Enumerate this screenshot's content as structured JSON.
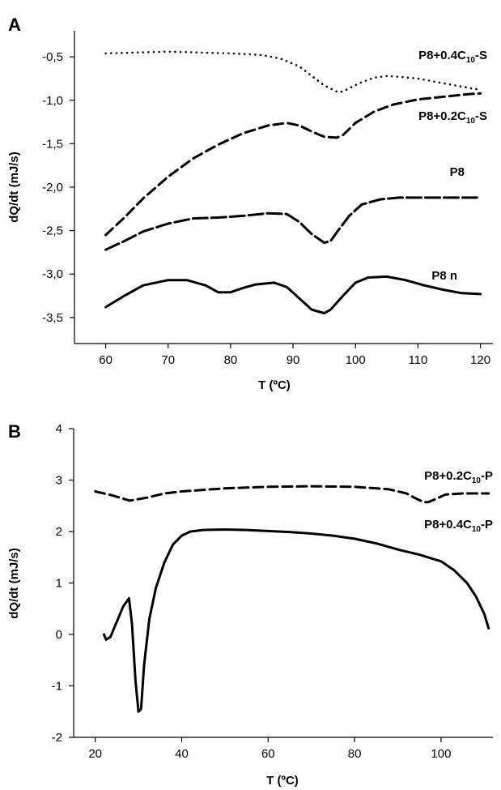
{
  "chart_data": [
    {
      "panel": "A",
      "type": "line",
      "xlabel": "T (ºC)",
      "ylabel": "dQ/dt (mJ/s)",
      "xlim": [
        55,
        122
      ],
      "ylim": [
        -3.8,
        -0.2
      ],
      "xticks": [
        60,
        70,
        80,
        90,
        100,
        110,
        120
      ],
      "yticks": [
        -0.5,
        -1.0,
        -1.5,
        -2.0,
        -2.5,
        -3.0,
        -3.5
      ],
      "ytick_labels": [
        "-0,5",
        "-1,0",
        "-1,5",
        "-2,0",
        "-2,5",
        "-3,0",
        "-3,5"
      ],
      "grid": false,
      "series": [
        {
          "name_main": "P8+0.4C",
          "name_sub": "10",
          "name_tail": "-S",
          "style": "dotted",
          "stroke_width": 2.6,
          "x": [
            60,
            65,
            70,
            75,
            80,
            85,
            88,
            91,
            93,
            95,
            97,
            98,
            99,
            101,
            103,
            105,
            107,
            110,
            113,
            116,
            120
          ],
          "y": [
            -0.46,
            -0.45,
            -0.44,
            -0.45,
            -0.46,
            -0.48,
            -0.52,
            -0.61,
            -0.72,
            -0.83,
            -0.9,
            -0.9,
            -0.86,
            -0.79,
            -0.74,
            -0.72,
            -0.73,
            -0.75,
            -0.79,
            -0.83,
            -0.88
          ]
        },
        {
          "name_main": "P8+0.2C",
          "name_sub": "10",
          "name_tail": "-S",
          "style": "dashed",
          "stroke_width": 3,
          "x": [
            60,
            63,
            66,
            70,
            74,
            78,
            82,
            86,
            89,
            91,
            93,
            95,
            97,
            98,
            100,
            103,
            106,
            110,
            114,
            118,
            120
          ],
          "y": [
            -2.55,
            -2.35,
            -2.13,
            -1.88,
            -1.67,
            -1.51,
            -1.38,
            -1.29,
            -1.26,
            -1.29,
            -1.36,
            -1.42,
            -1.43,
            -1.4,
            -1.26,
            -1.13,
            -1.05,
            -0.99,
            -0.96,
            -0.93,
            -0.92
          ]
        },
        {
          "name_main": "P8",
          "name_sub": "",
          "name_tail": "",
          "style": "long-dash",
          "stroke_width": 3,
          "x": [
            60,
            63,
            66,
            70,
            74,
            78,
            82,
            86,
            89,
            91,
            93,
            95,
            96,
            97,
            99,
            101,
            104,
            107,
            110,
            115,
            120
          ],
          "y": [
            -2.72,
            -2.62,
            -2.51,
            -2.42,
            -2.36,
            -2.35,
            -2.33,
            -2.3,
            -2.31,
            -2.4,
            -2.54,
            -2.64,
            -2.62,
            -2.52,
            -2.33,
            -2.2,
            -2.14,
            -2.12,
            -2.12,
            -2.12,
            -2.12
          ]
        },
        {
          "name_main": "P8 n",
          "name_sub": "",
          "name_tail": "",
          "style": "solid",
          "stroke_width": 3,
          "x": [
            60,
            63,
            66,
            70,
            73,
            76,
            78,
            80,
            82,
            84,
            87,
            89,
            91,
            93,
            95,
            96,
            98,
            100,
            102,
            105,
            108,
            111,
            114,
            117,
            120
          ],
          "y": [
            -3.38,
            -3.25,
            -3.13,
            -3.07,
            -3.07,
            -3.13,
            -3.21,
            -3.21,
            -3.16,
            -3.12,
            -3.1,
            -3.15,
            -3.28,
            -3.41,
            -3.45,
            -3.41,
            -3.25,
            -3.1,
            -3.04,
            -3.03,
            -3.07,
            -3.13,
            -3.18,
            -3.22,
            -3.23
          ]
        }
      ]
    },
    {
      "panel": "B",
      "type": "line",
      "xlabel": "T (ºC)",
      "ylabel": "dQ/dt (mJ/s)",
      "xlim": [
        15,
        112
      ],
      "ylim": [
        -2,
        4
      ],
      "xticks": [
        20,
        40,
        60,
        80,
        100
      ],
      "yticks": [
        4,
        3,
        2,
        1,
        0,
        -1,
        -2
      ],
      "ytick_labels": [
        "4",
        "3",
        "2",
        "1",
        "0",
        "-1",
        "-2"
      ],
      "grid": false,
      "series": [
        {
          "name_main": "P8+0.2C",
          "name_sub": "10",
          "name_tail": "-P",
          "style": "dashed",
          "stroke_width": 3,
          "x": [
            20,
            24,
            28,
            32,
            36,
            40,
            50,
            60,
            70,
            80,
            88,
            92,
            94,
            96,
            97,
            99,
            101,
            105,
            111
          ],
          "y": [
            2.78,
            2.7,
            2.6,
            2.66,
            2.74,
            2.78,
            2.84,
            2.87,
            2.88,
            2.87,
            2.82,
            2.74,
            2.65,
            2.57,
            2.57,
            2.64,
            2.72,
            2.74,
            2.74
          ]
        },
        {
          "name_main": "P8+0.4C",
          "name_sub": "10",
          "name_tail": "-P",
          "style": "solid",
          "stroke_width": 3,
          "x": [
            22,
            22.5,
            23.5,
            25,
            26.5,
            27.8,
            28.5,
            29.3,
            30,
            30.6,
            31.3,
            32.5,
            34,
            36,
            38,
            40,
            42,
            45,
            50,
            55,
            60,
            65,
            70,
            75,
            80,
            85,
            90,
            95,
            100,
            103,
            106,
            108,
            110,
            111
          ],
          "y": [
            0,
            -0.1,
            -0.05,
            0.25,
            0.55,
            0.7,
            0.2,
            -0.9,
            -1.5,
            -1.45,
            -0.6,
            0.3,
            0.9,
            1.4,
            1.75,
            1.92,
            2.0,
            2.03,
            2.04,
            2.03,
            2.01,
            1.99,
            1.96,
            1.92,
            1.86,
            1.77,
            1.65,
            1.55,
            1.42,
            1.25,
            1.0,
            0.75,
            0.4,
            0.12
          ]
        }
      ]
    }
  ]
}
